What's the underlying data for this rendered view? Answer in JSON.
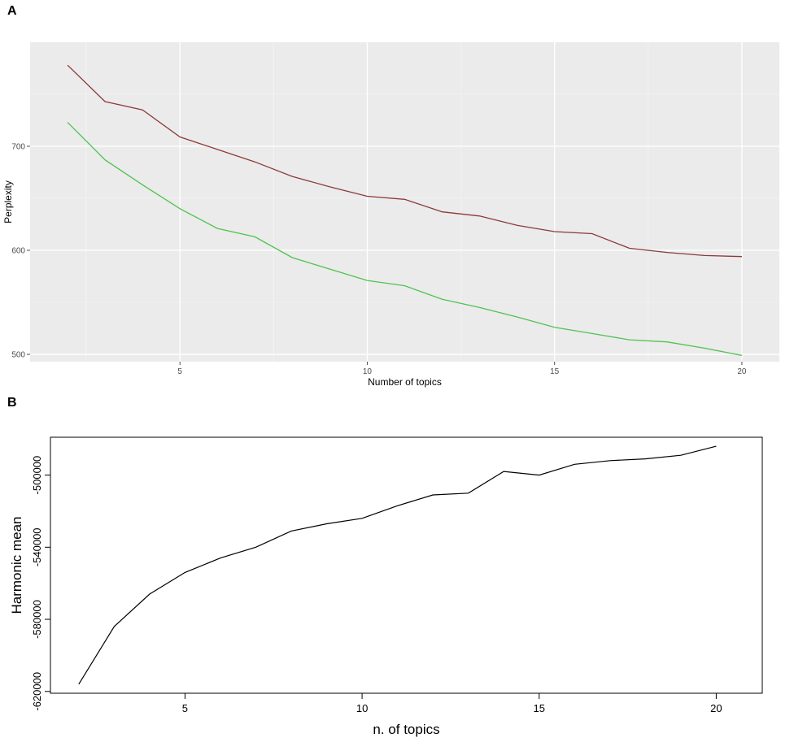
{
  "panels": {
    "a_label": "A",
    "b_label": "B"
  },
  "chart_data": [
    {
      "type": "line",
      "title": "",
      "xlabel": "Number of topics",
      "ylabel": "Perplexity",
      "xlim": [
        1,
        21
      ],
      "ylim": [
        493,
        800
      ],
      "x_ticks": [
        5,
        10,
        15,
        20
      ],
      "y_ticks": [
        500,
        600,
        700
      ],
      "grid": true,
      "background": "#ebebeb",
      "x": [
        2,
        3,
        4,
        5,
        6,
        7,
        8,
        9,
        10,
        11,
        12,
        13,
        14,
        15,
        16,
        17,
        18,
        19,
        20
      ],
      "series": [
        {
          "color": "#8b3a3a",
          "values": [
            778,
            743,
            735,
            709,
            697,
            685,
            671,
            661,
            652,
            649,
            637,
            633,
            624,
            618,
            616,
            602,
            598,
            595,
            594
          ]
        },
        {
          "color": "#4fc34f",
          "values": [
            723,
            687,
            663,
            640,
            621,
            613,
            593,
            582,
            571,
            566,
            553,
            545,
            536,
            526,
            520,
            514,
            512,
            506,
            499
          ]
        }
      ]
    },
    {
      "type": "line",
      "title": "",
      "xlabel": "n. of topics",
      "ylabel": "Harmonic mean",
      "xlim": [
        1.2,
        21.3
      ],
      "ylim": [
        -621000,
        -479000
      ],
      "x_ticks": [
        5,
        10,
        15,
        20
      ],
      "y_ticks": [
        -500000,
        -540000,
        -580000,
        -620000
      ],
      "grid": false,
      "x": [
        2,
        3,
        4,
        5,
        6,
        7,
        8,
        9,
        10,
        11,
        12,
        13,
        14,
        15,
        16,
        17,
        18,
        19,
        20
      ],
      "series": [
        {
          "color": "#000000",
          "values": [
            -616000,
            -584000,
            -566000,
            -554000,
            -546000,
            -540000,
            -531000,
            -527000,
            -524000,
            -517000,
            -511000,
            -510000,
            -498000,
            -500000,
            -494000,
            -492000,
            -491000,
            -489000,
            -484000
          ]
        }
      ]
    }
  ]
}
